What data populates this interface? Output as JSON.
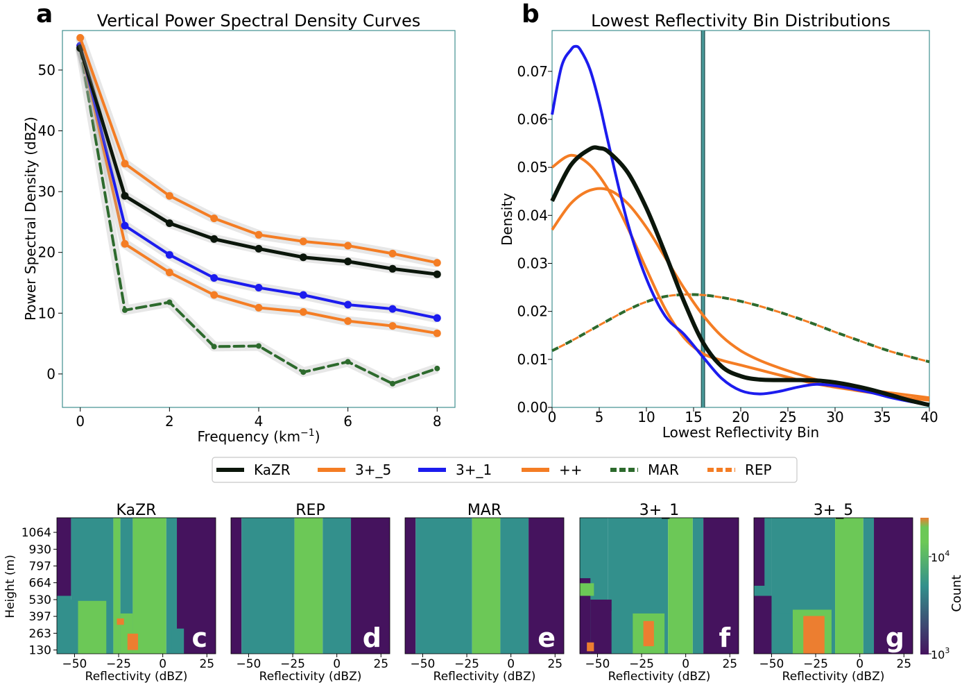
{
  "colors": {
    "kazr": "#0b160b",
    "orange": "#f47d24",
    "blue": "#1c1cee",
    "mar": "#2d6a2d",
    "axes": "#3f8f8f",
    "vline": "#4a9a9a",
    "halo": "#a9a9a9",
    "cm_dark": "#45135e",
    "cm_teal": "#33908c",
    "cm_green": "#6cc857",
    "cm_orange": "#ec7e30"
  },
  "chart_data": [
    {
      "id": "a",
      "panel_letter": "a",
      "type": "line",
      "title": "Vertical Power Spectral Density Curves",
      "xlabel": "Frequency (km",
      "xlabel_sup": "−1",
      "xlabel_close": ")",
      "ylabel": "Power Spectral Density (dBZ)",
      "xlim": [
        -0.4,
        8.4
      ],
      "ylim": [
        -5.5,
        56.5
      ],
      "xticks": [
        0,
        2,
        4,
        6,
        8
      ],
      "yticks": [
        0,
        10,
        20,
        30,
        40,
        50
      ],
      "x": [
        0,
        1,
        2,
        3,
        4,
        5,
        6,
        7,
        8
      ],
      "series": [
        {
          "name": "MAR",
          "color_key": "mar",
          "dash": true,
          "width": 4,
          "values": [
            53.5,
            10.5,
            11.8,
            4.5,
            4.6,
            0.3,
            2.0,
            -1.6,
            0.9
          ]
        },
        {
          "name": "++",
          "color_key": "orange",
          "dash": false,
          "width": 4,
          "values": [
            54.0,
            21.4,
            16.7,
            13.0,
            10.9,
            10.2,
            8.7,
            7.9,
            6.7
          ]
        },
        {
          "name": "3+_1",
          "color_key": "blue",
          "dash": false,
          "width": 4,
          "values": [
            54.0,
            24.4,
            19.6,
            15.8,
            14.2,
            13.0,
            11.4,
            10.7,
            9.2
          ]
        },
        {
          "name": "KaZR",
          "color_key": "kazr",
          "dash": false,
          "width": 5,
          "values": [
            53.6,
            29.3,
            24.8,
            22.2,
            20.6,
            19.2,
            18.5,
            17.3,
            16.4
          ]
        },
        {
          "name": "3+_5",
          "color_key": "orange",
          "dash": false,
          "width": 4,
          "values": [
            55.3,
            34.6,
            29.3,
            25.6,
            22.9,
            21.8,
            21.1,
            19.8,
            18.3
          ]
        }
      ]
    },
    {
      "id": "b",
      "panel_letter": "b",
      "type": "line",
      "title": "Lowest Reflectivity Bin Distributions",
      "xlabel": "Lowest Reflectivity Bin",
      "ylabel": "Density",
      "xlim": [
        0,
        40
      ],
      "ylim": [
        0,
        0.0785
      ],
      "xticks": [
        0,
        5,
        10,
        15,
        20,
        25,
        30,
        35,
        40
      ],
      "yticks": [
        0.0,
        0.01,
        0.02,
        0.03,
        0.04,
        0.05,
        0.06,
        0.07
      ],
      "ytick_labels": [
        "0.00",
        "0.01",
        "0.02",
        "0.03",
        "0.04",
        "0.05",
        "0.06",
        "0.07"
      ],
      "vline_x": 16,
      "series": [
        {
          "name": "MAR",
          "color_key": "mar",
          "dash": true,
          "width": 4,
          "x": [
            0,
            2,
            4,
            6,
            8,
            10,
            12,
            14,
            16,
            18,
            20,
            22,
            24,
            26,
            28,
            30,
            32,
            34,
            36,
            38,
            40
          ],
          "values": [
            0.0118,
            0.0138,
            0.016,
            0.0182,
            0.0203,
            0.022,
            0.0231,
            0.0235,
            0.0234,
            0.0229,
            0.0221,
            0.0211,
            0.0199,
            0.0186,
            0.0172,
            0.0157,
            0.0143,
            0.0129,
            0.0116,
            0.0105,
            0.0095
          ]
        },
        {
          "name": "REP",
          "color_key": "orange",
          "dash": true,
          "width": 3,
          "x": [
            0,
            2,
            4,
            6,
            8,
            10,
            12,
            14,
            16,
            18,
            20,
            22,
            24,
            26,
            28,
            30,
            32,
            34,
            36,
            38,
            40
          ],
          "values": [
            0.0118,
            0.0138,
            0.016,
            0.0182,
            0.0203,
            0.022,
            0.0231,
            0.0235,
            0.0234,
            0.0229,
            0.0221,
            0.0211,
            0.0199,
            0.0186,
            0.0172,
            0.0157,
            0.0143,
            0.0129,
            0.0116,
            0.0105,
            0.0095
          ]
        },
        {
          "name": "++",
          "color_key": "orange",
          "dash": false,
          "width": 4,
          "x": [
            0,
            2,
            4,
            6,
            8,
            10,
            12,
            14,
            16,
            18,
            20,
            22,
            24,
            26,
            28,
            30,
            32,
            34,
            36,
            38,
            40
          ],
          "values": [
            0.037,
            0.0425,
            0.0452,
            0.0453,
            0.0425,
            0.0375,
            0.0312,
            0.0248,
            0.0192,
            0.0148,
            0.0118,
            0.0098,
            0.0083,
            0.007,
            0.0058,
            0.0048,
            0.0041,
            0.0035,
            0.003,
            0.0025,
            0.002
          ]
        },
        {
          "name": "3+_5",
          "color_key": "orange",
          "dash": false,
          "width": 4,
          "x": [
            0,
            2,
            4,
            6,
            8,
            10,
            12,
            14,
            16,
            18,
            20,
            22,
            24,
            26,
            28,
            30,
            32,
            34,
            36,
            38,
            40
          ],
          "values": [
            0.05,
            0.0525,
            0.0505,
            0.0452,
            0.0375,
            0.0288,
            0.0205,
            0.0145,
            0.0112,
            0.0098,
            0.0088,
            0.0078,
            0.0068,
            0.0058,
            0.0049,
            0.0042,
            0.0036,
            0.003,
            0.0024,
            0.0019,
            0.0015
          ]
        },
        {
          "name": "3+_1",
          "color_key": "blue",
          "dash": false,
          "width": 4,
          "x": [
            0,
            1,
            2,
            2.5,
            3,
            4,
            5,
            6,
            8,
            10,
            12,
            14,
            16,
            18,
            20,
            22,
            24,
            26,
            28,
            30,
            32,
            34,
            36,
            38,
            40
          ],
          "values": [
            0.061,
            0.071,
            0.0745,
            0.0752,
            0.0745,
            0.0705,
            0.0635,
            0.0548,
            0.0385,
            0.0268,
            0.019,
            0.0152,
            0.0105,
            0.006,
            0.0035,
            0.0028,
            0.0033,
            0.0042,
            0.0048,
            0.0045,
            0.0038,
            0.003,
            0.002,
            0.0012,
            0.0005
          ]
        },
        {
          "name": "KaZR",
          "color_key": "kazr",
          "dash": false,
          "width": 6,
          "x": [
            0,
            2,
            4,
            5,
            6,
            8,
            10,
            12,
            14,
            16,
            18,
            20,
            22,
            24,
            26,
            28,
            30,
            32,
            34,
            36,
            38,
            40
          ],
          "values": [
            0.043,
            0.0505,
            0.0538,
            0.054,
            0.0532,
            0.049,
            0.0415,
            0.032,
            0.022,
            0.0135,
            0.0085,
            0.0065,
            0.0058,
            0.0057,
            0.0057,
            0.0056,
            0.0052,
            0.0045,
            0.0036,
            0.0025,
            0.0014,
            0.0005
          ]
        }
      ]
    },
    {
      "id": "legend",
      "type": "legend",
      "entries": [
        {
          "label": "KaZR",
          "color_key": "kazr",
          "dash": false
        },
        {
          "label": "3+_5",
          "color_key": "orange",
          "dash": false
        },
        {
          "label": "3+_1",
          "color_key": "blue",
          "dash": false
        },
        {
          "label": "++",
          "color_key": "orange",
          "dash": false
        },
        {
          "label": "MAR",
          "color_key": "mar",
          "dash": true
        },
        {
          "label": "REP",
          "color_key": "orange",
          "dash": true
        }
      ]
    },
    {
      "id": "c",
      "type": "heatmap",
      "title": "KaZR",
      "panel_letter": "c",
      "xlabel": "Reflectivity (dBZ)",
      "ylabel": "Height (m)",
      "xlim": [
        -60,
        30
      ],
      "ylim": [
        100,
        1180
      ],
      "xticks": [
        -50,
        -25,
        0,
        25
      ],
      "yticks": [
        130,
        263,
        397,
        530,
        664,
        797,
        930,
        1064
      ],
      "bands": [
        {
          "from": -60,
          "to": -52,
          "level": "teal"
        },
        {
          "from": -52,
          "to": -28,
          "level": "teal"
        },
        {
          "from": -28,
          "to": -24,
          "level": "green"
        },
        {
          "from": -24,
          "to": -17,
          "level": "teal"
        },
        {
          "from": -17,
          "to": 2,
          "level": "green"
        },
        {
          "from": 2,
          "to": 8,
          "level": "teal"
        },
        {
          "from": 8,
          "to": 30,
          "level": "dark"
        }
      ],
      "patches": [
        {
          "x0": -60,
          "x1": -52,
          "y0": 560,
          "y1": 1180,
          "level": "dark"
        },
        {
          "x0": -60,
          "x1": -48,
          "y0": 100,
          "y1": 530,
          "level": "teal"
        },
        {
          "x0": -48,
          "x1": -32,
          "y0": 100,
          "y1": 520,
          "level": "green"
        },
        {
          "x0": -24,
          "x1": -17,
          "y0": 100,
          "y1": 420,
          "level": "green"
        },
        {
          "x0": -26,
          "x1": -22,
          "y0": 330,
          "y1": 380,
          "level": "orange"
        },
        {
          "x0": -20,
          "x1": -14,
          "y0": 130,
          "y1": 260,
          "level": "orange"
        },
        {
          "x0": 5,
          "x1": 12,
          "y0": 100,
          "y1": 300,
          "level": "teal"
        }
      ]
    },
    {
      "id": "d",
      "type": "heatmap",
      "title": "REP",
      "panel_letter": "d",
      "xlabel": "Reflectivity (dBZ)",
      "xlim": [
        -60,
        30
      ],
      "ylim": [
        100,
        1180
      ],
      "xticks": [
        -50,
        -25,
        0,
        25
      ],
      "bands": [
        {
          "from": -60,
          "to": -54,
          "level": "dark"
        },
        {
          "from": -54,
          "to": -24,
          "level": "teal"
        },
        {
          "from": -24,
          "to": -8,
          "level": "green"
        },
        {
          "from": -8,
          "to": 8,
          "level": "teal"
        },
        {
          "from": 8,
          "to": 30,
          "level": "dark"
        }
      ],
      "patches": []
    },
    {
      "id": "e",
      "type": "heatmap",
      "title": "MAR",
      "panel_letter": "e",
      "xlabel": "Reflectivity (dBZ)",
      "xlim": [
        -60,
        30
      ],
      "ylim": [
        100,
        1180
      ],
      "xticks": [
        -50,
        -25,
        0,
        25
      ],
      "bands": [
        {
          "from": -60,
          "to": -54,
          "level": "dark"
        },
        {
          "from": -54,
          "to": -22,
          "level": "teal"
        },
        {
          "from": -22,
          "to": -6,
          "level": "green"
        },
        {
          "from": -6,
          "to": 10,
          "level": "teal"
        },
        {
          "from": 10,
          "to": 30,
          "level": "dark"
        }
      ],
      "patches": []
    },
    {
      "id": "f",
      "type": "heatmap",
      "title": "3+_1",
      "panel_letter": "f",
      "xlabel": "Reflectivity (dBZ)",
      "xlim": [
        -60,
        30
      ],
      "ylim": [
        100,
        1180
      ],
      "xticks": [
        -50,
        -25,
        0,
        25
      ],
      "bands": [
        {
          "from": -60,
          "to": -44,
          "level": "teal"
        },
        {
          "from": -44,
          "to": -10,
          "level": "teal"
        },
        {
          "from": -10,
          "to": 4,
          "level": "green"
        },
        {
          "from": 4,
          "to": 10,
          "level": "teal"
        },
        {
          "from": 10,
          "to": 30,
          "level": "dark"
        }
      ],
      "patches": [
        {
          "x0": -60,
          "x1": -54,
          "y0": 100,
          "y1": 700,
          "level": "dark"
        },
        {
          "x0": -60,
          "x1": -52,
          "y0": 560,
          "y1": 660,
          "level": "green"
        },
        {
          "x0": -54,
          "x1": -42,
          "y0": 100,
          "y1": 530,
          "level": "dark"
        },
        {
          "x0": -42,
          "x1": -30,
          "y0": 100,
          "y1": 440,
          "level": "teal"
        },
        {
          "x0": -30,
          "x1": -12,
          "y0": 100,
          "y1": 420,
          "level": "green"
        },
        {
          "x0": -24,
          "x1": -18,
          "y0": 160,
          "y1": 360,
          "level": "orange"
        },
        {
          "x0": -56,
          "x1": -52,
          "y0": 120,
          "y1": 190,
          "level": "orange"
        }
      ]
    },
    {
      "id": "g",
      "type": "heatmap",
      "title": "3+_5",
      "panel_letter": "g",
      "xlabel": "Reflectivity (dBZ)",
      "xlim": [
        -60,
        30
      ],
      "ylim": [
        100,
        1180
      ],
      "xticks": [
        -50,
        -25,
        0,
        25
      ],
      "colorbar": {
        "label": "Count",
        "tick_top": "10",
        "tick_top_exp": "4",
        "tick_bottom": "10",
        "tick_bottom_exp": "3"
      },
      "bands": [
        {
          "from": -60,
          "to": -50,
          "level": "teal"
        },
        {
          "from": -50,
          "to": -14,
          "level": "teal"
        },
        {
          "from": -14,
          "to": 2,
          "level": "green"
        },
        {
          "from": 2,
          "to": 8,
          "level": "teal"
        },
        {
          "from": 8,
          "to": 30,
          "level": "dark"
        }
      ],
      "patches": [
        {
          "x0": -60,
          "x1": -50,
          "y0": 100,
          "y1": 560,
          "level": "dark"
        },
        {
          "x0": -60,
          "x1": -54,
          "y0": 640,
          "y1": 1180,
          "level": "dark"
        },
        {
          "x0": -50,
          "x1": -38,
          "y0": 100,
          "y1": 420,
          "level": "teal"
        },
        {
          "x0": -38,
          "x1": -16,
          "y0": 100,
          "y1": 450,
          "level": "green"
        },
        {
          "x0": -32,
          "x1": -20,
          "y0": 100,
          "y1": 400,
          "level": "orange"
        }
      ]
    }
  ]
}
